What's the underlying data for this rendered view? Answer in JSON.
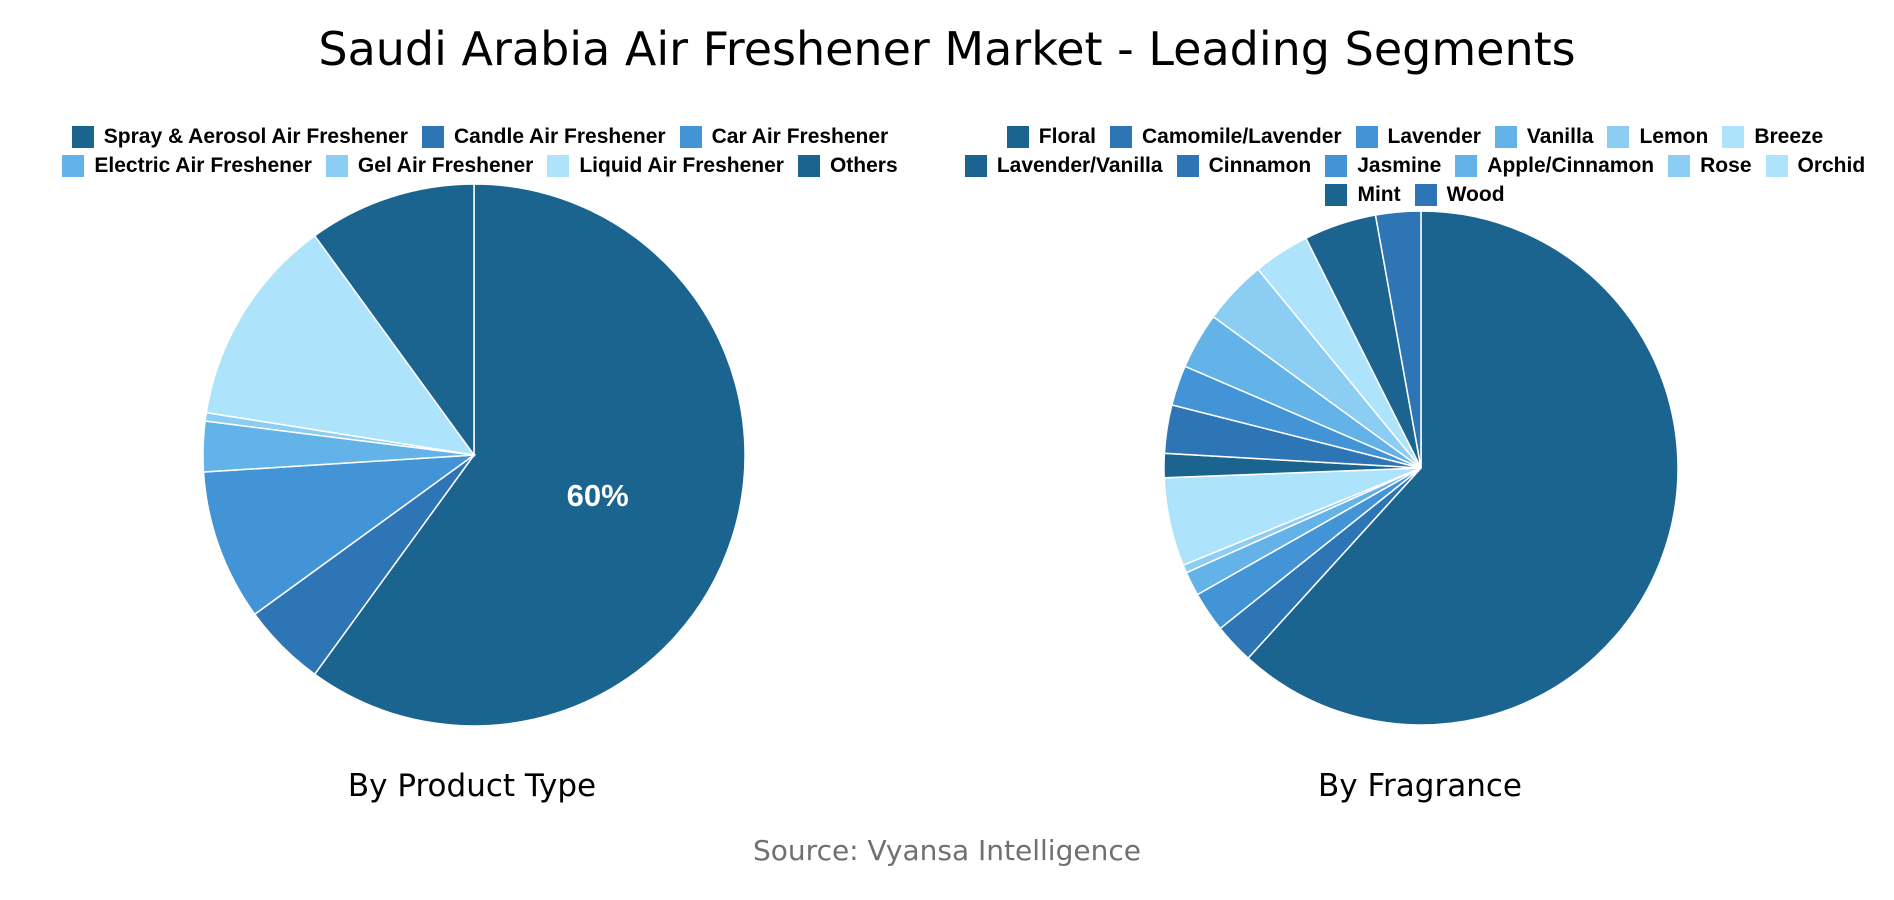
{
  "title": "Saudi Arabia Air Freshener Market - Leading Segments",
  "source": "Source: Vyansa Intelligence",
  "chart_data": [
    {
      "type": "pie",
      "title": "By Product Type",
      "categories": [
        "Spray & Aerosol Air Freshener",
        "Candle Air Freshener",
        "Car Air Freshener",
        "Electric Air Freshener",
        "Gel Air Freshener",
        "Liquid Air Freshener",
        "Others"
      ],
      "values": [
        60,
        5,
        9,
        3,
        0.5,
        12.5,
        10
      ],
      "colors": [
        "#1b648f",
        "#2e75b6",
        "#4394d6",
        "#64b3e8",
        "#8ccdf3",
        "#aee3fc",
        "#1b648f"
      ],
      "data_labels": [
        "60%",
        "",
        "",
        "",
        "",
        "",
        ""
      ]
    },
    {
      "type": "pie",
      "title": "By Fragrance",
      "categories": [
        "Floral",
        "Camomile/Lavender",
        "Lavender",
        "Vanilla",
        "Lemon",
        "Breeze",
        "Lavender/Vanilla",
        "Cinnamon",
        "Jasmine",
        "Apple/Cinnamon",
        "Rose",
        "Orchid",
        "Mint",
        "Wood"
      ],
      "values": [
        61,
        2.5,
        2.5,
        1.5,
        0.5,
        5.5,
        1.5,
        3,
        2.5,
        3.5,
        4,
        3.5,
        4.5,
        2.8
      ],
      "colors": [
        "#1b648f",
        "#2e75b6",
        "#4394d6",
        "#64b3e8",
        "#8ccdf3",
        "#aee3fc",
        "#1b648f",
        "#2e75b6",
        "#4394d6",
        "#64b3e8",
        "#8ccdf3",
        "#aee3fc",
        "#1b648f",
        "#2e75b6"
      ]
    }
  ]
}
